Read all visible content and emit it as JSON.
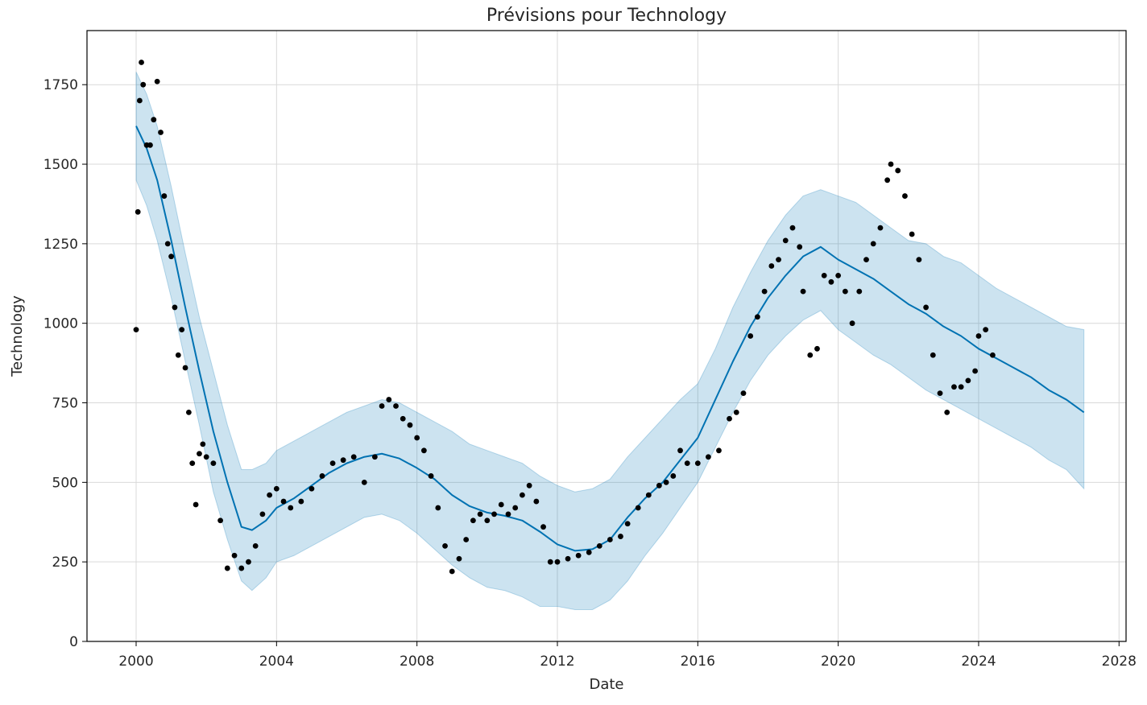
{
  "chart_data": {
    "type": "scatter",
    "title": "Prévisions pour Technology",
    "xlabel": "Date",
    "ylabel": "Technology",
    "xlim": [
      1998.6,
      2028.2
    ],
    "ylim": [
      0,
      1920
    ],
    "x_ticks": [
      2000,
      2004,
      2008,
      2012,
      2016,
      2020,
      2024,
      2028
    ],
    "x_tick_labels": [
      "2000",
      "2004",
      "2008",
      "2012",
      "2016",
      "2020",
      "2024",
      "2028"
    ],
    "y_ticks": [
      0,
      250,
      500,
      750,
      1000,
      1250,
      1500,
      1750
    ],
    "y_tick_labels": [
      "0",
      "250",
      "500",
      "750",
      "1000",
      "1250",
      "1500",
      "1750"
    ],
    "grid": true,
    "colors": {
      "observed": "#000000",
      "forecast": "#0072B2",
      "interval": "#0072B2"
    },
    "series": [
      {
        "kind": "forecast",
        "x": [
          2000.0,
          2000.3,
          2000.6,
          2001.0,
          2001.4,
          2001.8,
          2002.2,
          2002.6,
          2003.0,
          2003.3,
          2003.7,
          2004.0,
          2004.5,
          2005.0,
          2005.5,
          2006.0,
          2006.5,
          2007.0,
          2007.5,
          2008.0,
          2008.5,
          2009.0,
          2009.5,
          2010.0,
          2010.5,
          2011.0,
          2011.5,
          2012.0,
          2012.5,
          2013.0,
          2013.5,
          2014.0,
          2014.5,
          2015.0,
          2015.5,
          2016.0,
          2016.5,
          2017.0,
          2017.5,
          2018.0,
          2018.5,
          2019.0,
          2019.5,
          2020.0,
          2020.5,
          2021.0,
          2021.5,
          2022.0,
          2022.5,
          2023.0,
          2023.5,
          2024.0,
          2024.5,
          2025.0,
          2025.5,
          2026.0,
          2026.5,
          2027.0
        ],
        "y": [
          1620,
          1550,
          1450,
          1260,
          1050,
          850,
          660,
          500,
          360,
          350,
          380,
          420,
          450,
          490,
          530,
          560,
          580,
          590,
          575,
          545,
          510,
          460,
          425,
          405,
          395,
          380,
          345,
          305,
          285,
          290,
          320,
          390,
          450,
          500,
          570,
          640,
          760,
          880,
          990,
          1080,
          1150,
          1210,
          1240,
          1200,
          1170,
          1140,
          1100,
          1060,
          1030,
          990,
          960,
          920,
          890,
          860,
          830,
          790,
          760,
          720
        ]
      },
      {
        "kind": "interval",
        "x": [
          2000.0,
          2000.3,
          2000.6,
          2001.0,
          2001.4,
          2001.8,
          2002.2,
          2002.6,
          2003.0,
          2003.3,
          2003.7,
          2004.0,
          2004.5,
          2005.0,
          2005.5,
          2006.0,
          2006.5,
          2007.0,
          2007.5,
          2008.0,
          2008.5,
          2009.0,
          2009.5,
          2010.0,
          2010.5,
          2011.0,
          2011.5,
          2012.0,
          2012.5,
          2013.0,
          2013.5,
          2014.0,
          2014.5,
          2015.0,
          2015.5,
          2016.0,
          2016.5,
          2017.0,
          2017.5,
          2018.0,
          2018.5,
          2019.0,
          2019.5,
          2020.0,
          2020.5,
          2021.0,
          2021.5,
          2022.0,
          2022.5,
          2023.0,
          2023.5,
          2024.0,
          2024.5,
          2025.0,
          2025.5,
          2026.0,
          2026.5,
          2027.0
        ],
        "lower": [
          1450,
          1370,
          1260,
          1080,
          880,
          680,
          470,
          320,
          190,
          160,
          200,
          250,
          270,
          300,
          330,
          360,
          390,
          400,
          380,
          340,
          290,
          240,
          200,
          170,
          160,
          140,
          110,
          110,
          100,
          100,
          130,
          190,
          270,
          340,
          420,
          500,
          610,
          720,
          820,
          900,
          960,
          1010,
          1040,
          980,
          940,
          900,
          870,
          830,
          790,
          760,
          730,
          700,
          670,
          640,
          610,
          570,
          540,
          480
        ],
        "upper": [
          1790,
          1720,
          1620,
          1430,
          1220,
          1020,
          850,
          680,
          540,
          540,
          560,
          600,
          630,
          660,
          690,
          720,
          740,
          760,
          750,
          720,
          690,
          660,
          620,
          600,
          580,
          560,
          520,
          490,
          470,
          480,
          510,
          580,
          640,
          700,
          760,
          810,
          920,
          1050,
          1160,
          1260,
          1340,
          1400,
          1420,
          1400,
          1380,
          1340,
          1300,
          1260,
          1250,
          1210,
          1190,
          1150,
          1110,
          1080,
          1050,
          1020,
          990,
          980
        ]
      },
      {
        "kind": "observed",
        "x": [
          2000.0,
          2000.05,
          2000.1,
          2000.15,
          2000.2,
          2000.3,
          2000.4,
          2000.5,
          2000.6,
          2000.7,
          2000.8,
          2000.9,
          2001.0,
          2001.1,
          2001.2,
          2001.3,
          2001.4,
          2001.5,
          2001.6,
          2001.7,
          2001.8,
          2001.9,
          2002.0,
          2002.2,
          2002.4,
          2002.6,
          2002.8,
          2003.0,
          2003.2,
          2003.4,
          2003.6,
          2003.8,
          2004.0,
          2004.2,
          2004.4,
          2004.7,
          2005.0,
          2005.3,
          2005.6,
          2005.9,
          2006.2,
          2006.5,
          2006.8,
          2007.0,
          2007.2,
          2007.4,
          2007.6,
          2007.8,
          2008.0,
          2008.2,
          2008.4,
          2008.6,
          2008.8,
          2009.0,
          2009.2,
          2009.4,
          2009.6,
          2009.8,
          2010.0,
          2010.2,
          2010.4,
          2010.6,
          2010.8,
          2011.0,
          2011.2,
          2011.4,
          2011.6,
          2011.8,
          2012.0,
          2012.3,
          2012.6,
          2012.9,
          2013.2,
          2013.5,
          2013.8,
          2014.0,
          2014.3,
          2014.6,
          2014.9,
          2015.1,
          2015.3,
          2015.5,
          2015.7,
          2016.0,
          2016.3,
          2016.6,
          2016.9,
          2017.1,
          2017.3,
          2017.5,
          2017.7,
          2017.9,
          2018.1,
          2018.3,
          2018.5,
          2018.7,
          2018.9,
          2019.0,
          2019.2,
          2019.4,
          2019.6,
          2019.8,
          2020.0,
          2020.2,
          2020.4,
          2020.6,
          2020.8,
          2021.0,
          2021.2,
          2021.4,
          2021.5,
          2021.7,
          2021.9,
          2022.1,
          2022.3,
          2022.5,
          2022.7,
          2022.9,
          2023.1,
          2023.3,
          2023.5,
          2023.7,
          2023.9,
          2024.0,
          2024.2,
          2024.4
        ],
        "y": [
          980,
          1350,
          1700,
          1820,
          1750,
          1560,
          1560,
          1640,
          1760,
          1600,
          1400,
          1250,
          1210,
          1050,
          900,
          980,
          860,
          720,
          560,
          430,
          590,
          620,
          580,
          560,
          380,
          230,
          270,
          230,
          250,
          300,
          400,
          460,
          480,
          440,
          420,
          440,
          480,
          520,
          560,
          570,
          580,
          500,
          580,
          740,
          760,
          740,
          700,
          680,
          640,
          600,
          520,
          420,
          300,
          220,
          260,
          320,
          380,
          400,
          380,
          400,
          430,
          400,
          420,
          460,
          490,
          440,
          360,
          250,
          250,
          260,
          270,
          280,
          300,
          320,
          330,
          370,
          420,
          460,
          490,
          500,
          520,
          600,
          560,
          560,
          580,
          600,
          700,
          720,
          780,
          960,
          1020,
          1100,
          1180,
          1200,
          1260,
          1300,
          1240,
          1100,
          900,
          920,
          1150,
          1130,
          1150,
          1100,
          1000,
          1100,
          1200,
          1250,
          1300,
          1450,
          1500,
          1480,
          1400,
          1280,
          1200,
          1050,
          900,
          780,
          720,
          800,
          800,
          820,
          850,
          960,
          980,
          900
        ]
      }
    ]
  }
}
